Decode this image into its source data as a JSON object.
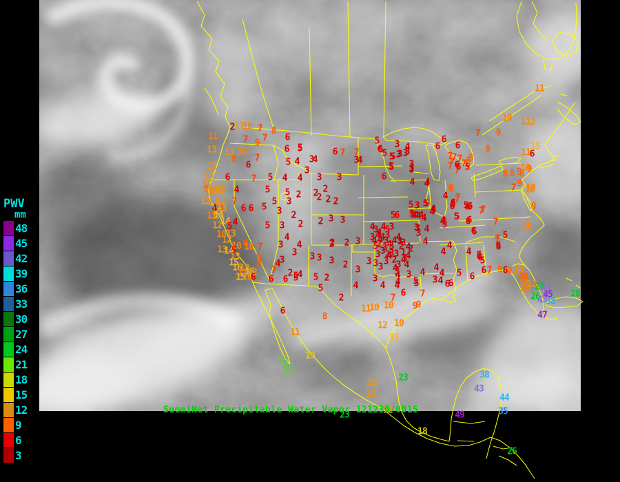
{
  "title": {
    "text": "SuomiNet Precipitable Water Vapor 121230/0015",
    "color": "#00D200"
  },
  "legend": {
    "title": "PWV",
    "units": "mm",
    "label_color": "#00E0E0",
    "entries": [
      {
        "value": "48",
        "color": "#8B008B"
      },
      {
        "value": "45",
        "color": "#8A2BE2"
      },
      {
        "value": "42",
        "color": "#6A5ACD"
      },
      {
        "value": "39",
        "color": "#00DCDC"
      },
      {
        "value": "36",
        "color": "#2E86DC"
      },
      {
        "value": "33",
        "color": "#1E5FA0"
      },
      {
        "value": "30",
        "color": "#0A7808"
      },
      {
        "value": "27",
        "color": "#00A014"
      },
      {
        "value": "24",
        "color": "#00C81E"
      },
      {
        "value": "21",
        "color": "#6EE600"
      },
      {
        "value": "18",
        "color": "#C8DC00"
      },
      {
        "value": "15",
        "color": "#F0C800"
      },
      {
        "value": "12",
        "color": "#DC8C14"
      },
      {
        "value": "9",
        "color": "#FF5F00"
      },
      {
        "value": "6",
        "color": "#E60000"
      },
      {
        "value": "3",
        "color": "#B40000"
      }
    ]
  },
  "map": {
    "outline_color": "#FFFF00"
  },
  "value_color_scale": [
    {
      "max": 4,
      "color": "#C80000"
    },
    {
      "max": 6,
      "color": "#E60000"
    },
    {
      "max": 7,
      "color": "#FF4000"
    },
    {
      "max": 9,
      "color": "#FF5F00"
    },
    {
      "max": 11,
      "color": "#FF8200"
    },
    {
      "max": 13,
      "color": "#E6961E"
    },
    {
      "max": 17,
      "color": "#F0B428"
    },
    {
      "max": 20,
      "color": "#DCC814"
    },
    {
      "max": 22,
      "color": "#50DC28"
    },
    {
      "max": 28,
      "color": "#00C828"
    },
    {
      "max": 31,
      "color": "#00A028"
    },
    {
      "max": 35,
      "color": "#2E86DC"
    },
    {
      "max": 40,
      "color": "#28B4E6"
    },
    {
      "max": 43,
      "color": "#8C6EDC"
    },
    {
      "max": 44,
      "color": "#28B4E6"
    },
    {
      "max": 46,
      "color": "#8A2BE2"
    },
    {
      "max": 99,
      "color": "#A01EC8"
    }
  ],
  "stations_format": "[x, y, value]",
  "stations": [
    [
      337,
      185,
      "2"
    ],
    [
      347,
      183,
      "13"
    ],
    [
      359,
      184,
      "10"
    ],
    [
      377,
      187,
      "7"
    ],
    [
      397,
      191,
      "8"
    ],
    [
      356,
      203,
      "7"
    ],
    [
      373,
      208,
      "9"
    ],
    [
      384,
      201,
      "7"
    ],
    [
      333,
      222,
      "13"
    ],
    [
      351,
      221,
      "10"
    ],
    [
      339,
      232,
      "8"
    ],
    [
      373,
      230,
      "7"
    ],
    [
      417,
      200,
      "6"
    ],
    [
      416,
      217,
      "6"
    ],
    [
      435,
      215,
      "5"
    ],
    [
      309,
      199,
      "11"
    ],
    [
      307,
      218,
      "13"
    ],
    [
      307,
      242,
      "12"
    ],
    [
      330,
      258,
      "6"
    ],
    [
      360,
      240,
      "6"
    ],
    [
      368,
      260,
      "7"
    ],
    [
      303,
      259,
      "12"
    ],
    [
      300,
      269,
      "11"
    ],
    [
      309,
      276,
      "12"
    ],
    [
      318,
      277,
      "12"
    ],
    [
      343,
      276,
      "4"
    ],
    [
      309,
      295,
      "13"
    ],
    [
      320,
      303,
      "9"
    ],
    [
      315,
      308,
      "15"
    ],
    [
      299,
      275,
      "9"
    ],
    [
      320,
      274,
      "12"
    ],
    [
      304,
      279,
      "11"
    ],
    [
      298,
      293,
      "12"
    ],
    [
      320,
      293,
      "12"
    ],
    [
      340,
      293,
      "7"
    ],
    [
      311,
      303,
      "4"
    ],
    [
      322,
      303,
      "13"
    ],
    [
      353,
      303,
      "6"
    ],
    [
      307,
      314,
      "11"
    ],
    [
      317,
      313,
      "14"
    ],
    [
      327,
      322,
      "14"
    ],
    [
      341,
      323,
      "4"
    ],
    [
      315,
      328,
      "12"
    ],
    [
      333,
      329,
      "5"
    ],
    [
      321,
      341,
      "10"
    ],
    [
      335,
      340,
      "13"
    ],
    [
      329,
      349,
      "12"
    ],
    [
      343,
      358,
      "10"
    ],
    [
      356,
      354,
      "8"
    ],
    [
      361,
      359,
      "10"
    ],
    [
      377,
      359,
      "7"
    ],
    [
      322,
      363,
      "13"
    ],
    [
      332,
      365,
      "14"
    ],
    [
      339,
      364,
      "5"
    ],
    [
      341,
      373,
      "13"
    ],
    [
      339,
      382,
      "15"
    ],
    [
      375,
      374,
      "9"
    ],
    [
      376,
      383,
      "8"
    ],
    [
      344,
      389,
      "16"
    ],
    [
      355,
      390,
      "12"
    ],
    [
      362,
      395,
      "16"
    ],
    [
      352,
      397,
      "11"
    ],
    [
      349,
      403,
      "15"
    ],
    [
      359,
      403,
      "10"
    ],
    [
      366,
      396,
      "12"
    ],
    [
      367,
      403,
      "6"
    ],
    [
      392,
      258,
      "5"
    ],
    [
      388,
      276,
      "5"
    ],
    [
      398,
      293,
      "5"
    ],
    [
      417,
      280,
      "5"
    ],
    [
      419,
      293,
      "3"
    ],
    [
      433,
      283,
      "2"
    ],
    [
      364,
      303,
      "6"
    ],
    [
      383,
      301,
      "5"
    ],
    [
      405,
      307,
      "3"
    ],
    [
      426,
      313,
      "2"
    ],
    [
      436,
      326,
      "2"
    ],
    [
      388,
      328,
      "5"
    ],
    [
      409,
      328,
      "3"
    ],
    [
      416,
      345,
      "4"
    ],
    [
      434,
      356,
      "4"
    ],
    [
      407,
      356,
      "3"
    ],
    [
      427,
      367,
      "3"
    ],
    [
      409,
      378,
      "3"
    ],
    [
      403,
      383,
      "4"
    ],
    [
      397,
      393,
      "7"
    ],
    [
      393,
      406,
      "6"
    ],
    [
      414,
      406,
      "6"
    ],
    [
      429,
      404,
      "5"
    ],
    [
      421,
      397,
      "2"
    ],
    [
      435,
      399,
      "4"
    ],
    [
      418,
      236,
      "5"
    ],
    [
      431,
      235,
      "4"
    ],
    [
      452,
      232,
      "3"
    ],
    [
      457,
      232,
      "4"
    ],
    [
      445,
      248,
      "3"
    ],
    [
      413,
      259,
      "4"
    ],
    [
      435,
      259,
      "4"
    ],
    [
      463,
      258,
      "3"
    ],
    [
      492,
      258,
      "3"
    ],
    [
      517,
      233,
      "3"
    ],
    [
      522,
      233,
      "4"
    ],
    [
      435,
      216,
      "5"
    ],
    [
      486,
      221,
      "6"
    ],
    [
      497,
      222,
      "7"
    ],
    [
      517,
      222,
      "7"
    ],
    [
      547,
      205,
      "5"
    ],
    [
      551,
      217,
      "6"
    ],
    [
      558,
      223,
      "5"
    ],
    [
      570,
      228,
      "5"
    ],
    [
      567,
      242,
      "5"
    ],
    [
      557,
      257,
      "6"
    ],
    [
      472,
      275,
      "2"
    ],
    [
      458,
      281,
      "2"
    ],
    [
      476,
      290,
      "2"
    ],
    [
      487,
      293,
      "2"
    ],
    [
      463,
      287,
      "2"
    ],
    [
      465,
      322,
      "2"
    ],
    [
      480,
      318,
      "3"
    ],
    [
      497,
      320,
      "3"
    ],
    [
      482,
      353,
      "2"
    ],
    [
      503,
      353,
      "2"
    ],
    [
      519,
      351,
      "3"
    ],
    [
      453,
      373,
      "3"
    ],
    [
      463,
      375,
      "3"
    ],
    [
      481,
      379,
      "3"
    ],
    [
      501,
      385,
      "2"
    ],
    [
      535,
      380,
      "3"
    ],
    [
      519,
      392,
      "3"
    ],
    [
      596,
      298,
      "5"
    ],
    [
      605,
      299,
      "3"
    ],
    [
      619,
      267,
      "4"
    ],
    [
      591,
      214,
      "4"
    ],
    [
      576,
      210,
      "3"
    ],
    [
      580,
      224,
      "3"
    ],
    [
      588,
      223,
      "3"
    ],
    [
      591,
      221,
      "3"
    ],
    [
      568,
      243,
      "5"
    ],
    [
      597,
      239,
      "3"
    ],
    [
      597,
      247,
      "3"
    ],
    [
      552,
      218,
      "6"
    ],
    [
      568,
      228,
      "5"
    ],
    [
      578,
      225,
      "3"
    ],
    [
      598,
      265,
      "4"
    ],
    [
      597,
      245,
      "3"
    ],
    [
      570,
      313,
      "5"
    ],
    [
      576,
      313,
      "6"
    ],
    [
      599,
      313,
      "5"
    ],
    [
      604,
      313,
      "4"
    ],
    [
      607,
      314,
      "4"
    ],
    [
      615,
      317,
      "4"
    ],
    [
      606,
      332,
      "3"
    ],
    [
      619,
      333,
      "4"
    ],
    [
      607,
      339,
      "3"
    ],
    [
      617,
      351,
      "4"
    ],
    [
      580,
      351,
      "3"
    ],
    [
      596,
      362,
      "2"
    ],
    [
      585,
      367,
      "1"
    ],
    [
      587,
      376,
      "3"
    ],
    [
      562,
      370,
      "2"
    ],
    [
      548,
      342,
      "4"
    ],
    [
      543,
      350,
      "4"
    ],
    [
      550,
      355,
      "2"
    ],
    [
      558,
      360,
      "3"
    ],
    [
      540,
      345,
      "3"
    ],
    [
      545,
      358,
      "5"
    ],
    [
      552,
      348,
      "4"
    ],
    [
      562,
      342,
      "3"
    ],
    [
      568,
      358,
      "3"
    ],
    [
      572,
      350,
      "4"
    ],
    [
      578,
      345,
      "4"
    ],
    [
      582,
      358,
      "2"
    ],
    [
      555,
      365,
      "3"
    ],
    [
      548,
      370,
      "3"
    ],
    [
      565,
      372,
      "4"
    ],
    [
      572,
      378,
      "2"
    ],
    [
      560,
      380,
      "3"
    ],
    [
      545,
      383,
      "3"
    ],
    [
      552,
      388,
      "3"
    ],
    [
      578,
      385,
      "3"
    ],
    [
      585,
      378,
      "4"
    ],
    [
      592,
      372,
      "4"
    ],
    [
      555,
      345,
      "4"
    ],
    [
      560,
      350,
      "3"
    ],
    [
      565,
      355,
      "4"
    ],
    [
      540,
      330,
      "4"
    ],
    [
      545,
      334,
      "3"
    ],
    [
      550,
      338,
      "4"
    ],
    [
      556,
      330,
      "4"
    ],
    [
      562,
      334,
      "5"
    ],
    [
      568,
      330,
      "3"
    ],
    [
      429,
      401,
      "5"
    ],
    [
      458,
      403,
      "5"
    ],
    [
      474,
      404,
      "2"
    ],
    [
      465,
      419,
      "5"
    ],
    [
      481,
      355,
      "2"
    ],
    [
      495,
      433,
      "2"
    ],
    [
      516,
      415,
      "4"
    ],
    [
      544,
      405,
      "3"
    ],
    [
      555,
      415,
      "4"
    ],
    [
      576,
      415,
      "4"
    ],
    [
      604,
      412,
      "5"
    ],
    [
      585,
      426,
      "6"
    ],
    [
      570,
      433,
      "7"
    ],
    [
      613,
      427,
      "7"
    ],
    [
      471,
      460,
      "8"
    ],
    [
      531,
      449,
      "11"
    ],
    [
      543,
      447,
      "10"
    ],
    [
      564,
      444,
      "10"
    ],
    [
      602,
      445,
      "9"
    ],
    [
      607,
      443,
      "9"
    ],
    [
      579,
      470,
      "10"
    ],
    [
      555,
      473,
      "12"
    ],
    [
      572,
      491,
      "15"
    ],
    [
      428,
      483,
      "11"
    ],
    [
      410,
      452,
      "6"
    ],
    [
      450,
      517,
      "19"
    ],
    [
      412,
      525,
      "22"
    ],
    [
      418,
      538,
      "22"
    ],
    [
      617,
      296,
      "5"
    ],
    [
      628,
      304,
      "4"
    ],
    [
      597,
      311,
      "5"
    ],
    [
      601,
      313,
      "4"
    ],
    [
      611,
      313,
      "4"
    ],
    [
      642,
      322,
      "4"
    ],
    [
      645,
      323,
      "5"
    ],
    [
      662,
      315,
      "5"
    ],
    [
      657,
      295,
      "6"
    ],
    [
      678,
      301,
      "6"
    ],
    [
      698,
      307,
      "7"
    ],
    [
      679,
      322,
      "6"
    ],
    [
      687,
      336,
      "6"
    ],
    [
      721,
      350,
      "7"
    ],
    [
      723,
      359,
      "6"
    ],
    [
      604,
      331,
      "3"
    ],
    [
      579,
      350,
      "3"
    ],
    [
      585,
      353,
      "3"
    ],
    [
      592,
      359,
      "4"
    ],
    [
      568,
      368,
      "3"
    ],
    [
      575,
      369,
      "3"
    ],
    [
      590,
      385,
      "4"
    ],
    [
      573,
      390,
      "4"
    ],
    [
      576,
      395,
      "3"
    ],
    [
      577,
      400,
      "4"
    ],
    [
      593,
      399,
      "3"
    ],
    [
      613,
      396,
      "4"
    ],
    [
      633,
      389,
      "4"
    ],
    [
      641,
      397,
      "4"
    ],
    [
      639,
      408,
      "4"
    ],
    [
      631,
      407,
      "3"
    ],
    [
      603,
      409,
      "5"
    ],
    [
      577,
      410,
      "4"
    ],
    [
      649,
      413,
      "6"
    ],
    [
      654,
      412,
      "6"
    ],
    [
      666,
      397,
      "5"
    ],
    [
      685,
      402,
      "6"
    ],
    [
      695,
      373,
      "6"
    ],
    [
      700,
      379,
      "5"
    ],
    [
      725,
      392,
      "9"
    ],
    [
      733,
      393,
      "6"
    ],
    [
      739,
      394,
      "9"
    ],
    [
      752,
      393,
      "10"
    ],
    [
      756,
      402,
      "8"
    ],
    [
      762,
      402,
      "8"
    ],
    [
      760,
      412,
      "10"
    ],
    [
      772,
      413,
      "12"
    ],
    [
      762,
      419,
      "10"
    ],
    [
      783,
      417,
      "27"
    ],
    [
      793,
      419,
      "41"
    ],
    [
      795,
      428,
      "45"
    ],
    [
      777,
      431,
      "26"
    ],
    [
      787,
      436,
      "43"
    ],
    [
      799,
      438,
      "38"
    ],
    [
      787,
      458,
      "47"
    ],
    [
      835,
      427,
      "28"
    ],
    [
      710,
      393,
      "7"
    ],
    [
      702,
      393,
      "6"
    ],
    [
      644,
      203,
      "6"
    ],
    [
      635,
      213,
      "6"
    ],
    [
      664,
      212,
      "6"
    ],
    [
      653,
      227,
      "7"
    ],
    [
      659,
      229,
      "7"
    ],
    [
      667,
      231,
      "7"
    ],
    [
      683,
      230,
      "8"
    ],
    [
      655,
      236,
      "7"
    ],
    [
      663,
      240,
      "6"
    ],
    [
      673,
      238,
      "7"
    ],
    [
      679,
      239,
      "8"
    ],
    [
      663,
      248,
      "7"
    ],
    [
      693,
      194,
      "7"
    ],
    [
      655,
      275,
      "8"
    ],
    [
      646,
      285,
      "4"
    ],
    [
      664,
      287,
      "7"
    ],
    [
      657,
      297,
      "6"
    ],
    [
      676,
      299,
      "5"
    ],
    [
      682,
      300,
      "6"
    ],
    [
      629,
      305,
      "4"
    ],
    [
      619,
      296,
      "5"
    ],
    [
      653,
      242,
      "7"
    ],
    [
      665,
      243,
      "6"
    ],
    [
      678,
      243,
      "5"
    ],
    [
      679,
      234,
      "8"
    ],
    [
      620,
      265,
      "4"
    ],
    [
      653,
      273,
      "8"
    ],
    [
      663,
      290,
      "7"
    ],
    [
      656,
      300,
      "6"
    ],
    [
      681,
      301,
      "6"
    ],
    [
      701,
      305,
      "7"
    ],
    [
      663,
      315,
      "5"
    ],
    [
      627,
      308,
      "4"
    ],
    [
      643,
      320,
      "4"
    ],
    [
      645,
      327,
      "5"
    ],
    [
      681,
      320,
      "6"
    ],
    [
      719,
      323,
      "7"
    ],
    [
      688,
      337,
      "6"
    ],
    [
      733,
      342,
      "5"
    ],
    [
      722,
      347,
      "7"
    ],
    [
      723,
      357,
      "6"
    ],
    [
      652,
      357,
      "4"
    ],
    [
      643,
      366,
      "4"
    ],
    [
      680,
      366,
      "4"
    ],
    [
      695,
      371,
      "5"
    ],
    [
      697,
      375,
      "6"
    ],
    [
      765,
      329,
      "10"
    ],
    [
      774,
      300,
      "8"
    ],
    [
      769,
      276,
      "10"
    ],
    [
      754,
      267,
      "9"
    ],
    [
      745,
      273,
      "7"
    ],
    [
      770,
      273,
      "10"
    ],
    [
      753,
      250,
      "9"
    ],
    [
      743,
      252,
      "8"
    ],
    [
      733,
      253,
      "8"
    ],
    [
      757,
      253,
      "8"
    ],
    [
      768,
      246,
      "9"
    ],
    [
      762,
      244,
      "10"
    ],
    [
      708,
      217,
      "8"
    ],
    [
      723,
      193,
      "9"
    ],
    [
      736,
      172,
      "10"
    ],
    [
      763,
      177,
      "11"
    ],
    [
      770,
      178,
      "12"
    ],
    [
      777,
      213,
      "15"
    ],
    [
      763,
      222,
      "11"
    ],
    [
      772,
      224,
      "6"
    ],
    [
      783,
      129,
      "11"
    ],
    [
      540,
      556,
      "12"
    ],
    [
      538,
      573,
      "13"
    ],
    [
      585,
      549,
      "23"
    ],
    [
      563,
      596,
      "12"
    ],
    [
      500,
      603,
      "23"
    ],
    [
      613,
      627,
      "18"
    ],
    [
      667,
      603,
      "49"
    ],
    [
      730,
      598,
      "35"
    ],
    [
      703,
      545,
      "38"
    ],
    [
      695,
      565,
      "43"
    ],
    [
      732,
      578,
      "44"
    ],
    [
      743,
      656,
      "26"
    ]
  ]
}
